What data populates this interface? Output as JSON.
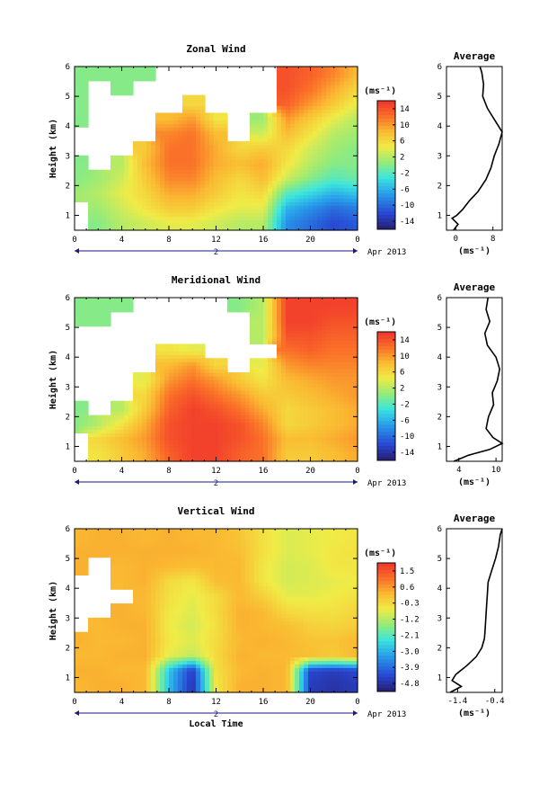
{
  "figure": {
    "day_label": "2",
    "month_label": "Apr 2013",
    "x_axis_label": "Local Time",
    "profile_title": "Average",
    "unit_label": "(ms⁻¹)",
    "y_axis_label": "Height (km)"
  },
  "chart_data": [
    {
      "type": "heatmap",
      "title": "Zonal Wind",
      "ylabel": "Height (km)",
      "x_ticks": [
        "0",
        "4",
        "8",
        "12",
        "16",
        "20",
        "0"
      ],
      "x_range": [
        0,
        24
      ],
      "y_ticks": [
        "1",
        "2",
        "3",
        "4",
        "5",
        "6"
      ],
      "y_range": [
        0.5,
        6
      ],
      "colorbar": {
        "ticks": [
          "14",
          "10",
          "6",
          "2",
          "-2",
          "-6",
          "-10",
          "-14"
        ],
        "range": [
          -16,
          16
        ]
      },
      "grid": {
        "times": [
          0,
          2,
          4,
          6,
          8,
          10,
          12,
          14,
          16,
          18,
          20,
          22,
          24
        ],
        "heights": [
          0.75,
          1.25,
          1.75,
          2.25,
          2.75,
          3.25,
          3.75,
          4.25,
          4.75,
          5.25,
          5.75
        ],
        "values": [
          [
            null,
            0,
            2,
            3,
            4,
            4,
            3,
            2,
            2,
            -8,
            -10,
            -12,
            -11
          ],
          [
            null,
            1,
            3,
            5,
            7,
            7,
            5,
            4,
            4,
            -6,
            -8,
            -10,
            -9
          ],
          [
            1,
            2,
            4,
            6,
            9,
            9,
            7,
            5,
            6,
            -2,
            -4,
            -6,
            -5
          ],
          [
            0,
            1,
            3,
            7,
            11,
            11,
            8,
            6,
            8,
            3,
            0,
            -2,
            -1
          ],
          [
            0,
            null,
            2,
            8,
            12,
            12,
            9,
            8,
            9,
            5,
            2,
            0,
            0
          ],
          [
            null,
            null,
            null,
            7,
            12,
            12,
            9,
            6,
            7,
            6,
            3,
            1,
            0
          ],
          [
            null,
            null,
            null,
            null,
            11,
            12,
            8,
            null,
            3,
            8,
            5,
            2,
            1
          ],
          [
            0,
            null,
            null,
            null,
            8,
            10,
            5,
            null,
            1,
            10,
            7,
            4,
            2
          ],
          [
            0,
            null,
            null,
            null,
            null,
            6,
            null,
            null,
            null,
            13,
            10,
            7,
            4
          ],
          [
            0,
            null,
            0,
            null,
            null,
            null,
            null,
            null,
            null,
            14,
            12,
            9,
            6
          ],
          [
            0,
            0,
            0,
            0,
            null,
            null,
            null,
            null,
            null,
            14,
            13,
            11,
            8
          ]
        ]
      },
      "profile": {
        "xlabel": "(ms⁻¹)",
        "x_ticks": [
          "0",
          "8"
        ],
        "x_range": [
          -2,
          10
        ],
        "heights": [
          0.5,
          0.7,
          0.9,
          1.0,
          1.2,
          1.5,
          1.8,
          2.2,
          2.6,
          3.0,
          3.4,
          3.8,
          4.2,
          4.6,
          5.0,
          5.4,
          5.8,
          6.0
        ],
        "values": [
          -0.5,
          0.5,
          -0.8,
          0.2,
          1.5,
          3.0,
          4.8,
          6.5,
          7.6,
          8.3,
          9.3,
          10,
          8.4,
          6.8,
          5.8,
          6.0,
          5.6,
          5.2
        ]
      }
    },
    {
      "type": "heatmap",
      "title": "Meridional Wind",
      "ylabel": "Height (km)",
      "x_ticks": [
        "0",
        "4",
        "8",
        "12",
        "16",
        "20",
        "0"
      ],
      "x_range": [
        0,
        24
      ],
      "y_ticks": [
        "1",
        "2",
        "3",
        "4",
        "5",
        "6"
      ],
      "y_range": [
        0.5,
        6
      ],
      "colorbar": {
        "ticks": [
          "14",
          "10",
          "6",
          "2",
          "-2",
          "-6",
          "-10",
          "-14"
        ],
        "range": [
          -16,
          16
        ]
      },
      "grid": {
        "times": [
          0,
          2,
          4,
          6,
          8,
          10,
          12,
          14,
          16,
          18,
          20,
          22,
          24
        ],
        "heights": [
          0.75,
          1.25,
          1.75,
          2.25,
          2.75,
          3.25,
          3.75,
          4.25,
          4.75,
          5.25,
          5.75
        ],
        "values": [
          [
            null,
            5,
            7,
            9,
            13,
            15,
            15,
            13,
            12,
            7,
            7,
            8,
            9
          ],
          [
            null,
            6,
            8,
            10,
            14,
            15,
            15,
            14,
            12,
            8,
            8,
            9,
            10
          ],
          [
            0,
            2,
            5,
            9,
            14,
            15,
            15,
            14,
            11,
            6,
            7,
            8,
            9
          ],
          [
            0,
            null,
            2,
            7,
            13,
            15,
            14,
            12,
            9,
            6,
            7,
            8,
            9
          ],
          [
            null,
            null,
            null,
            6,
            12,
            14,
            12,
            10,
            7,
            7,
            8,
            9,
            10
          ],
          [
            null,
            null,
            null,
            4,
            10,
            12,
            10,
            7,
            5,
            8,
            9,
            10,
            10
          ],
          [
            null,
            null,
            null,
            null,
            8,
            10,
            6,
            null,
            4,
            10,
            11,
            11,
            11
          ],
          [
            null,
            null,
            null,
            null,
            5,
            4,
            null,
            null,
            null,
            12,
            13,
            12,
            12
          ],
          [
            null,
            null,
            null,
            null,
            null,
            null,
            null,
            null,
            2,
            14,
            14,
            13,
            13
          ],
          [
            0,
            0,
            null,
            null,
            null,
            null,
            null,
            null,
            2,
            15,
            15,
            14,
            14
          ],
          [
            0,
            0,
            0,
            null,
            null,
            null,
            null,
            0,
            2,
            15,
            15,
            15,
            15
          ]
        ]
      },
      "profile": {
        "xlabel": "(ms⁻¹)",
        "x_ticks": [
          "4",
          "10"
        ],
        "x_range": [
          2,
          11
        ],
        "heights": [
          0.5,
          0.7,
          0.9,
          1.1,
          1.3,
          1.6,
          2.0,
          2.4,
          2.8,
          3.2,
          3.6,
          4.0,
          4.4,
          4.8,
          5.2,
          5.6,
          6.0
        ],
        "values": [
          3.2,
          5.5,
          9.0,
          11,
          9.5,
          8.4,
          8.8,
          9.6,
          9.4,
          10.2,
          10.6,
          10.0,
          8.6,
          8.2,
          9.0,
          8.4,
          8.7
        ]
      }
    },
    {
      "type": "heatmap",
      "title": "Vertical Wind",
      "ylabel": "Height (km)",
      "xlabel": "Local Time",
      "x_ticks": [
        "0",
        "4",
        "8",
        "12",
        "16",
        "20",
        "0"
      ],
      "x_range": [
        0,
        24
      ],
      "y_ticks": [
        "1",
        "2",
        "3",
        "4",
        "5",
        "6"
      ],
      "y_range": [
        0.5,
        6
      ],
      "colorbar": {
        "ticks": [
          "1.5",
          "0.6",
          "-0.3",
          "-1.2",
          "-2.1",
          "-3.0",
          "-3.9",
          "-4.8"
        ],
        "range": [
          -5.5,
          2.0
        ]
      },
      "grid": {
        "times": [
          0,
          2,
          4,
          6,
          8,
          10,
          12,
          14,
          16,
          18,
          20,
          22,
          24
        ],
        "heights": [
          0.75,
          1.25,
          1.75,
          2.25,
          2.75,
          3.25,
          3.75,
          4.25,
          4.75,
          5.25,
          5.75
        ],
        "values": [
          [
            0.2,
            0.3,
            0.3,
            0.2,
            -3.0,
            -5.0,
            -0.6,
            0.3,
            0.3,
            0.2,
            -4.8,
            -5.0,
            -4.8
          ],
          [
            0.3,
            0.3,
            0.2,
            0.2,
            -2.9,
            -4.8,
            -0.5,
            0.2,
            0.3,
            0.2,
            -4.6,
            -4.8,
            -4.6
          ],
          [
            0.2,
            0.2,
            0.3,
            0.3,
            -0.8,
            -1.2,
            -0.4,
            0.3,
            0.2,
            0.2,
            0.1,
            -0.1,
            0.2
          ],
          [
            0.3,
            0.2,
            0.2,
            0.3,
            -0.6,
            -0.9,
            -0.4,
            0.2,
            0.3,
            0.2,
            0.0,
            0.0,
            0.2
          ],
          [
            null,
            0.2,
            0.3,
            0.3,
            -0.7,
            -1.0,
            -0.5,
            0.3,
            0.2,
            0.1,
            -0.2,
            -0.3,
            -0.1
          ],
          [
            null,
            null,
            0.3,
            0.2,
            -0.6,
            -0.9,
            -0.4,
            0.3,
            0.2,
            -0.4,
            -0.5,
            -0.5,
            -0.3
          ],
          [
            null,
            null,
            null,
            0.2,
            -0.5,
            -0.8,
            -0.4,
            0.2,
            -0.2,
            -0.8,
            -0.8,
            -0.7,
            -0.5
          ],
          [
            null,
            null,
            0.2,
            0.3,
            -0.4,
            -0.6,
            0.1,
            0.2,
            -0.6,
            -1.0,
            -0.9,
            -0.8,
            -0.7
          ],
          [
            0.3,
            null,
            0.2,
            0.3,
            0.2,
            0.1,
            0.2,
            0.2,
            -0.6,
            -1.0,
            -0.9,
            -0.6,
            -0.6
          ],
          [
            0.3,
            0.3,
            0.3,
            0.3,
            0.3,
            0.3,
            0.2,
            0.1,
            -0.5,
            -0.9,
            -0.8,
            -0.6,
            -0.5
          ],
          [
            0.2,
            0.3,
            0.3,
            0.2,
            0.3,
            0.2,
            0.2,
            0.0,
            -0.5,
            -0.9,
            -0.8,
            -0.7,
            -0.6
          ]
        ]
      },
      "profile": {
        "xlabel": "(ms⁻¹)",
        "x_ticks": [
          "-1.4",
          "-0.4"
        ],
        "x_range": [
          -1.7,
          -0.2
        ],
        "heights": [
          0.5,
          0.7,
          0.9,
          1.1,
          1.4,
          1.7,
          2.0,
          2.3,
          2.6,
          3.0,
          3.4,
          3.8,
          4.2,
          4.6,
          5.0,
          5.4,
          5.8,
          6.0
        ],
        "values": [
          -1.6,
          -1.3,
          -1.55,
          -1.45,
          -1.15,
          -0.9,
          -0.75,
          -0.68,
          -0.66,
          -0.64,
          -0.62,
          -0.6,
          -0.58,
          -0.48,
          -0.38,
          -0.3,
          -0.25,
          -0.2
        ]
      }
    }
  ]
}
